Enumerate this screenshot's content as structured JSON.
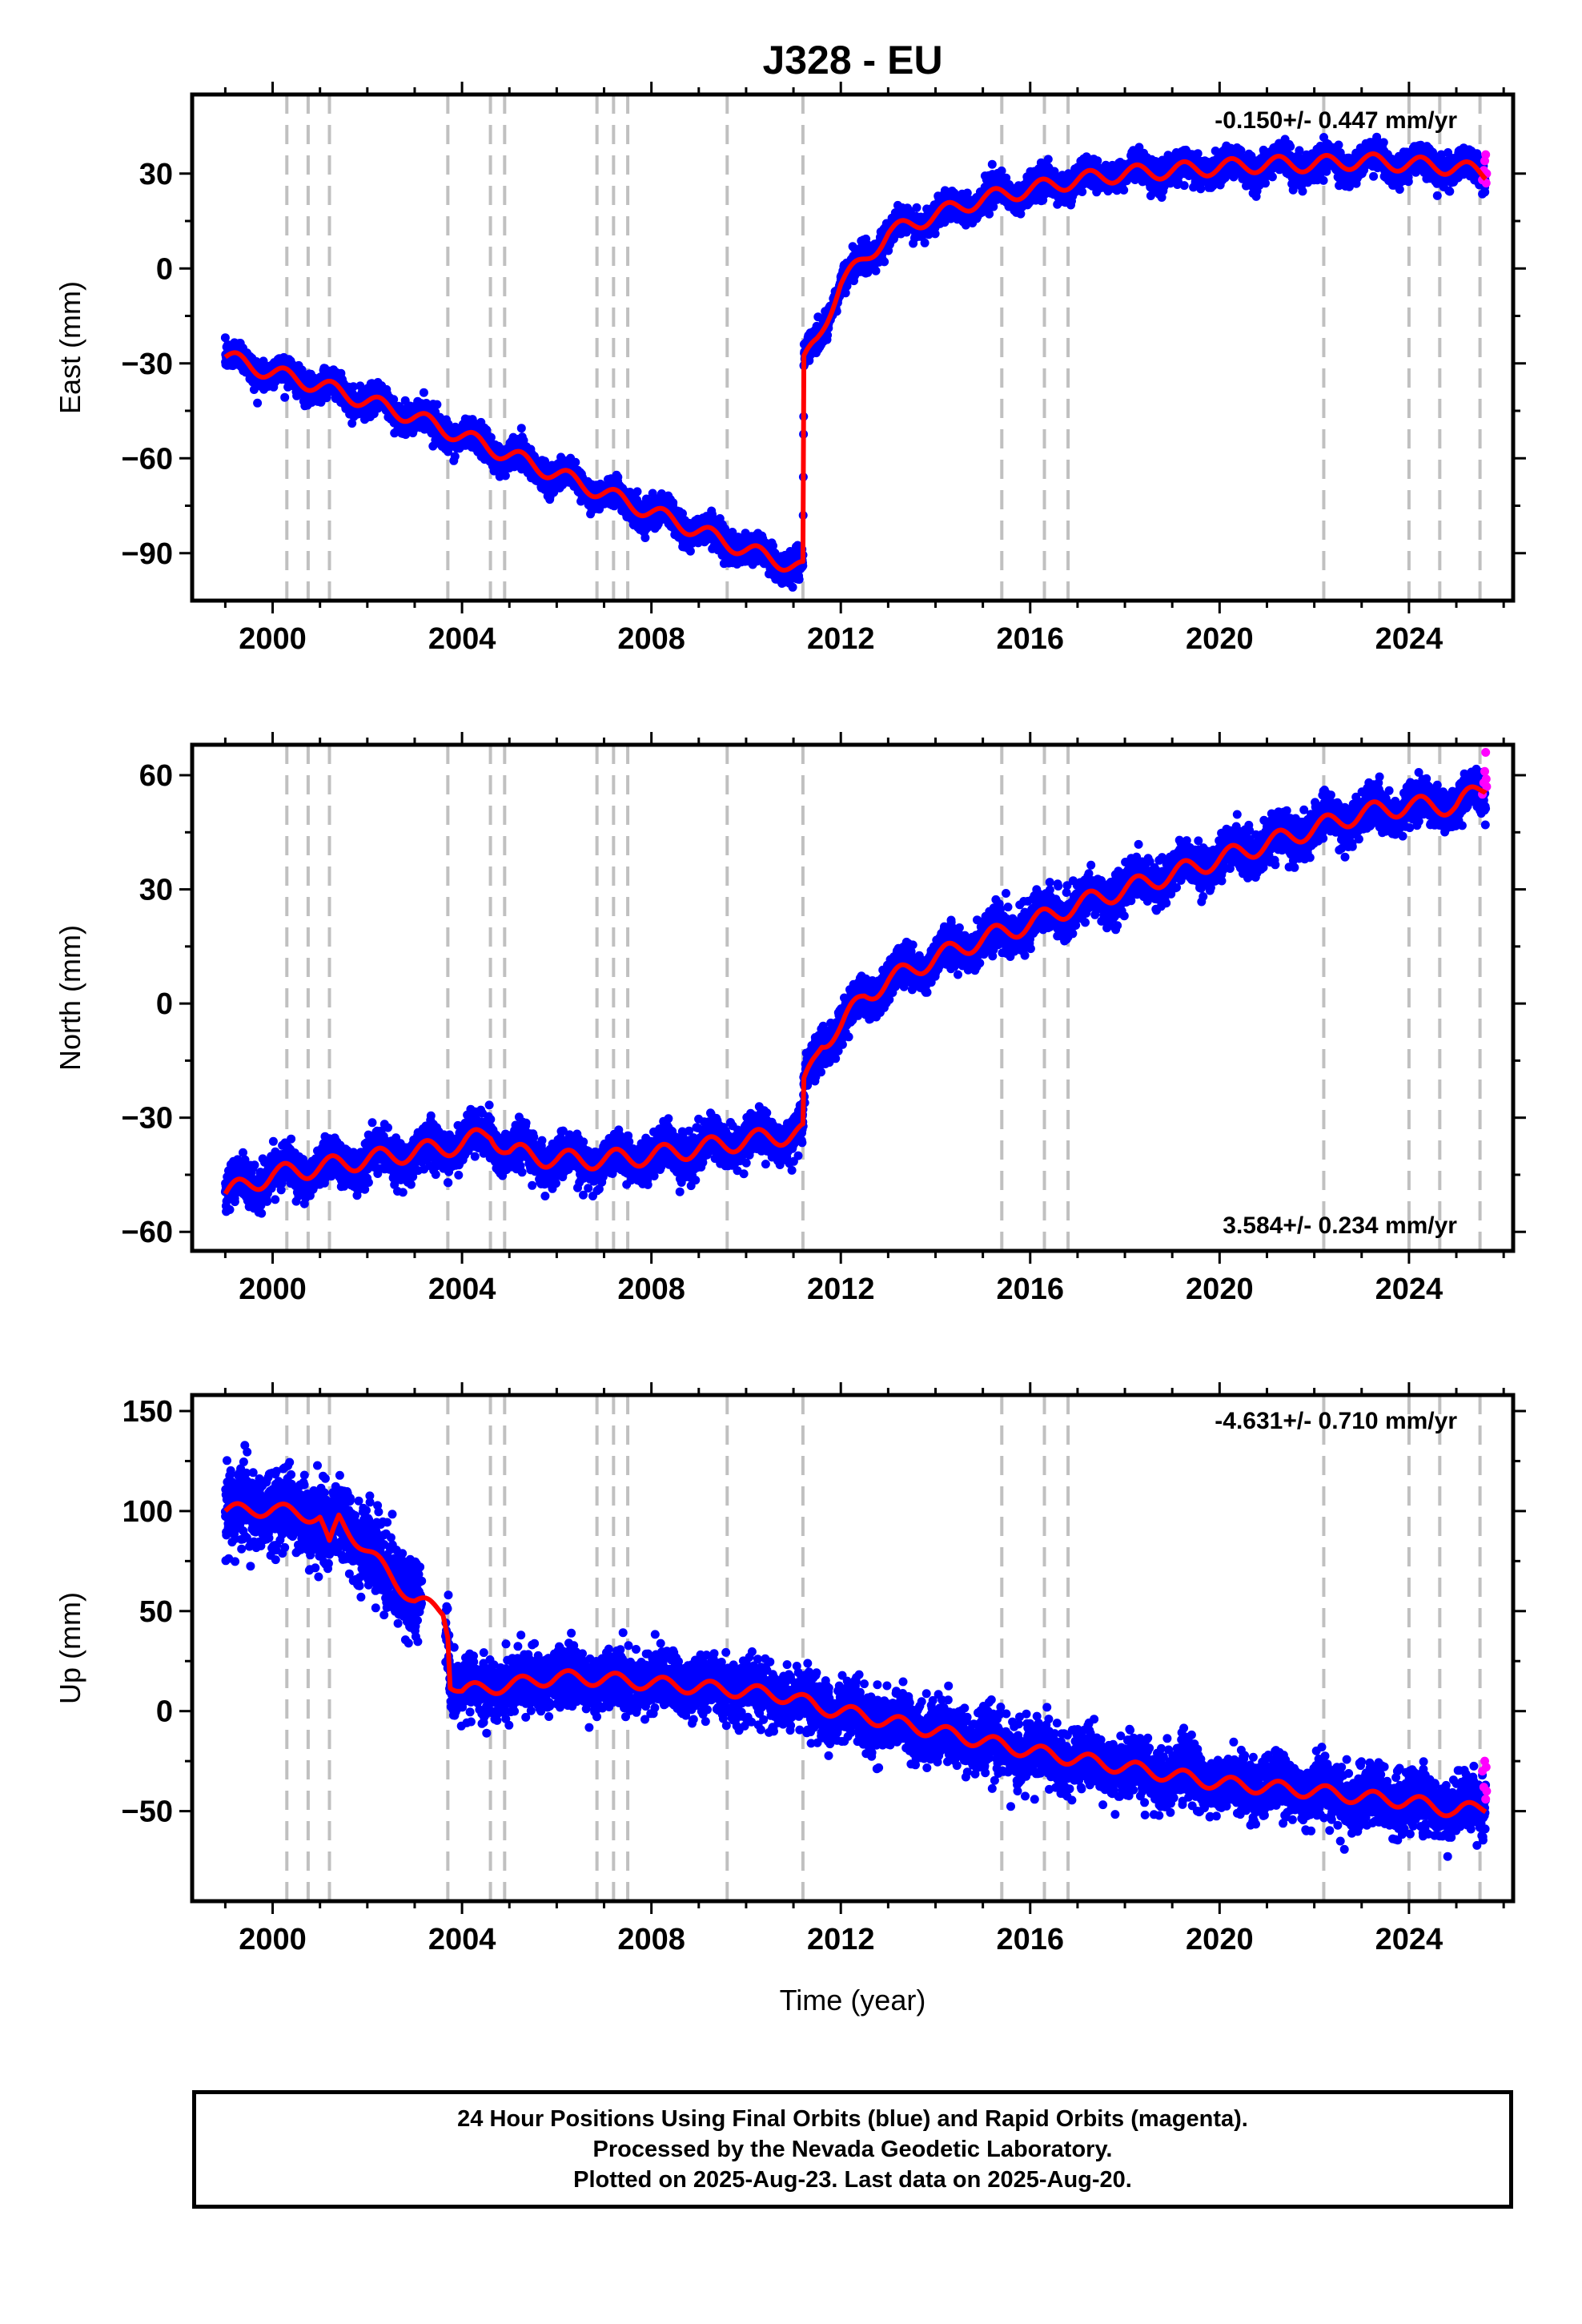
{
  "title": "J328 - EU",
  "xlabel": "Time (year)",
  "footer": {
    "lines": [
      "24 Hour Positions Using Final Orbits (blue) and Rapid Orbits (magenta).",
      "Processed by the Nevada Geodetic Laboratory.",
      "Plotted on 2025-Aug-23. Last data on 2025-Aug-20."
    ]
  },
  "colors": {
    "final": "#0000ff",
    "rapid": "#ff00ff",
    "model": "#ff0000",
    "steps": "#c0c0c0"
  },
  "chart_data": [
    {
      "type": "scatter",
      "name": "east",
      "ylabel": "East (mm)",
      "rate_label": "-0.150+/- 0.447 mm/yr",
      "rate_position": "top-right",
      "xlim": [
        1998.3,
        2026.2
      ],
      "ylim": [
        -105,
        55
      ],
      "xticks": [
        2000,
        2004,
        2008,
        2012,
        2016,
        2020,
        2024
      ],
      "xtick_labels": [
        "2000",
        "2004",
        "2008",
        "2012",
        "2016",
        "2020",
        "2024"
      ],
      "yticks": [
        -90,
        -60,
        -30,
        0,
        30
      ],
      "ytick_labels": [
        "−90",
        "−60",
        "−30",
        "0",
        "30"
      ],
      "grid": false,
      "step_lines": [
        2000.3,
        2000.75,
        2001.2,
        2003.7,
        2004.6,
        2004.9,
        2006.85,
        2007.2,
        2007.5,
        2009.6,
        2011.2,
        2015.4,
        2016.3,
        2016.8,
        2022.2,
        2024.0,
        2024.65,
        2025.5
      ],
      "model": [
        [
          1999.0,
          -28
        ],
        [
          2000.0,
          -33
        ],
        [
          2001.0,
          -37
        ],
        [
          2002.0,
          -42
        ],
        [
          2003.0,
          -47
        ],
        [
          2004.0,
          -53
        ],
        [
          2005.0,
          -59
        ],
        [
          2006.0,
          -65
        ],
        [
          2007.0,
          -71
        ],
        [
          2008.0,
          -77
        ],
        [
          2009.0,
          -83
        ],
        [
          2010.0,
          -89
        ],
        [
          2011.2,
          -95
        ],
        [
          2011.22,
          -30
        ],
        [
          2011.5,
          -22
        ],
        [
          2012.0,
          -5
        ],
        [
          2012.5,
          3
        ],
        [
          2013.0,
          11
        ],
        [
          2014.0,
          17
        ],
        [
          2015.0,
          22
        ],
        [
          2016.0,
          25
        ],
        [
          2017.0,
          28
        ],
        [
          2018.0,
          30
        ],
        [
          2019.0,
          31
        ],
        [
          2020.0,
          32
        ],
        [
          2021.0,
          33
        ],
        [
          2022.0,
          33
        ],
        [
          2023.0,
          34
        ],
        [
          2024.0,
          33
        ],
        [
          2025.0,
          32
        ],
        [
          2025.6,
          30
        ]
      ],
      "seasonal_amplitude": 2.5,
      "scatter_sd": 2.2,
      "rapid_points": [
        [
          2025.55,
          28
        ],
        [
          2025.58,
          31
        ],
        [
          2025.6,
          34
        ],
        [
          2025.62,
          36
        ],
        [
          2025.63,
          27
        ],
        [
          2025.64,
          30
        ]
      ]
    },
    {
      "type": "scatter",
      "name": "north",
      "ylabel": "North (mm)",
      "rate_label": "3.584+/- 0.234 mm/yr",
      "rate_position": "bottom-right",
      "xlim": [
        1998.3,
        2026.2
      ],
      "ylim": [
        -65,
        68
      ],
      "xticks": [
        2000,
        2004,
        2008,
        2012,
        2016,
        2020,
        2024
      ],
      "xtick_labels": [
        "2000",
        "2004",
        "2008",
        "2012",
        "2016",
        "2020",
        "2024"
      ],
      "yticks": [
        -60,
        -30,
        0,
        30,
        60
      ],
      "ytick_labels": [
        "−60",
        "−30",
        "0",
        "30",
        "60"
      ],
      "grid": false,
      "step_lines": [
        2000.3,
        2000.75,
        2001.2,
        2003.7,
        2004.6,
        2004.9,
        2006.85,
        2007.2,
        2007.5,
        2009.6,
        2011.2,
        2015.4,
        2016.3,
        2016.8,
        2022.2,
        2024.0,
        2024.65,
        2025.5
      ],
      "model": [
        [
          1999.0,
          -50
        ],
        [
          2000.0,
          -45
        ],
        [
          2001.0,
          -43
        ],
        [
          2002.0,
          -41
        ],
        [
          2003.0,
          -39
        ],
        [
          2004.0,
          -37
        ],
        [
          2004.6,
          -34
        ],
        [
          2005.0,
          -39
        ],
        [
          2006.0,
          -41
        ],
        [
          2007.0,
          -41
        ],
        [
          2008.0,
          -40
        ],
        [
          2009.0,
          -38
        ],
        [
          2010.0,
          -36
        ],
        [
          2011.2,
          -34
        ],
        [
          2011.22,
          -22
        ],
        [
          2011.6,
          -10
        ],
        [
          2012.0,
          -6
        ],
        [
          2012.5,
          2
        ],
        [
          2013.0,
          6
        ],
        [
          2014.0,
          12
        ],
        [
          2015.0,
          17
        ],
        [
          2016.0,
          21
        ],
        [
          2017.0,
          26
        ],
        [
          2018.0,
          30
        ],
        [
          2019.0,
          34
        ],
        [
          2020.0,
          38
        ],
        [
          2021.0,
          42
        ],
        [
          2022.0,
          46
        ],
        [
          2023.0,
          50
        ],
        [
          2024.0,
          52
        ],
        [
          2025.0,
          52
        ],
        [
          2025.6,
          57
        ]
      ],
      "seasonal_amplitude": 2.5,
      "scatter_sd": 2.6,
      "rapid_points": [
        [
          2025.55,
          55
        ],
        [
          2025.58,
          58
        ],
        [
          2025.6,
          61
        ],
        [
          2025.62,
          66
        ],
        [
          2025.63,
          59
        ],
        [
          2025.64,
          57
        ]
      ]
    },
    {
      "type": "scatter",
      "name": "up",
      "ylabel": "Up (mm)",
      "rate_label": "-4.631+/- 0.710 mm/yr",
      "rate_position": "top-right",
      "xlim": [
        1998.3,
        2026.2
      ],
      "ylim": [
        -95,
        158
      ],
      "xticks": [
        2000,
        2004,
        2008,
        2012,
        2016,
        2020,
        2024
      ],
      "xtick_labels": [
        "2000",
        "2004",
        "2008",
        "2012",
        "2016",
        "2020",
        "2024"
      ],
      "yticks": [
        -50,
        0,
        50,
        100,
        150
      ],
      "ytick_labels": [
        "−50",
        "0",
        "50",
        "100",
        "150"
      ],
      "grid": false,
      "step_lines": [
        2000.3,
        2000.75,
        2001.2,
        2003.7,
        2004.6,
        2004.9,
        2006.85,
        2007.2,
        2007.5,
        2009.6,
        2011.2,
        2015.4,
        2016.3,
        2016.8,
        2022.2,
        2024.0,
        2024.65,
        2025.5
      ],
      "model": [
        [
          1999.0,
          100
        ],
        [
          2000.0,
          101
        ],
        [
          2001.0,
          97
        ],
        [
          2001.2,
          82
        ],
        [
          2001.4,
          96
        ],
        [
          2002.0,
          80
        ],
        [
          2003.0,
          55
        ],
        [
          2003.6,
          50
        ],
        [
          2003.7,
          40
        ],
        [
          2003.75,
          15
        ],
        [
          2004.0,
          10
        ],
        [
          2005.0,
          13
        ],
        [
          2006.0,
          17
        ],
        [
          2007.0,
          16
        ],
        [
          2008.0,
          14
        ],
        [
          2009.0,
          12
        ],
        [
          2010.0,
          10
        ],
        [
          2011.0,
          7
        ],
        [
          2011.5,
          2
        ],
        [
          2012.0,
          0
        ],
        [
          2013.0,
          -5
        ],
        [
          2014.0,
          -10
        ],
        [
          2015.0,
          -15
        ],
        [
          2016.0,
          -20
        ],
        [
          2017.0,
          -24
        ],
        [
          2018.0,
          -28
        ],
        [
          2019.0,
          -32
        ],
        [
          2020.0,
          -36
        ],
        [
          2021.0,
          -38
        ],
        [
          2022.0,
          -40
        ],
        [
          2023.0,
          -43
        ],
        [
          2024.0,
          -45
        ],
        [
          2025.0,
          -50
        ],
        [
          2025.6,
          -48
        ]
      ],
      "seasonal_amplitude": 3.5,
      "scatter_sd": 7.0,
      "rapid_points": [
        [
          2025.55,
          -30
        ],
        [
          2025.58,
          -38
        ],
        [
          2025.6,
          -25
        ],
        [
          2025.62,
          -44
        ],
        [
          2025.63,
          -28
        ],
        [
          2025.64,
          -40
        ]
      ]
    }
  ]
}
